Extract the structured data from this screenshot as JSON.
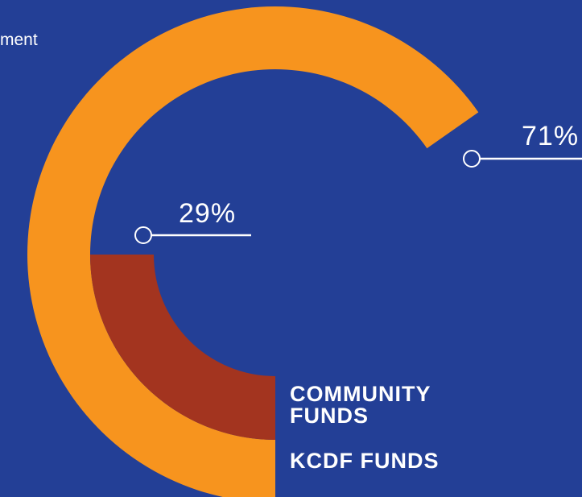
{
  "partial_heading": "ment",
  "colors": {
    "background": "#233f96",
    "kcdf": "#f7941e",
    "community": "#a3341f",
    "text": "#ffffff"
  },
  "chart_data": {
    "type": "pie",
    "variant": "partial-ring",
    "slices": [
      {
        "label": "KCDF FUNDS",
        "value": 71,
        "display": "71%",
        "color": "#f7941e"
      },
      {
        "label": "COMMUNITY FUNDS",
        "value": 29,
        "display": "29%",
        "color": "#a3341f"
      }
    ],
    "legend": [
      "COMMUNITY FUNDS",
      "KCDF FUNDS"
    ]
  }
}
